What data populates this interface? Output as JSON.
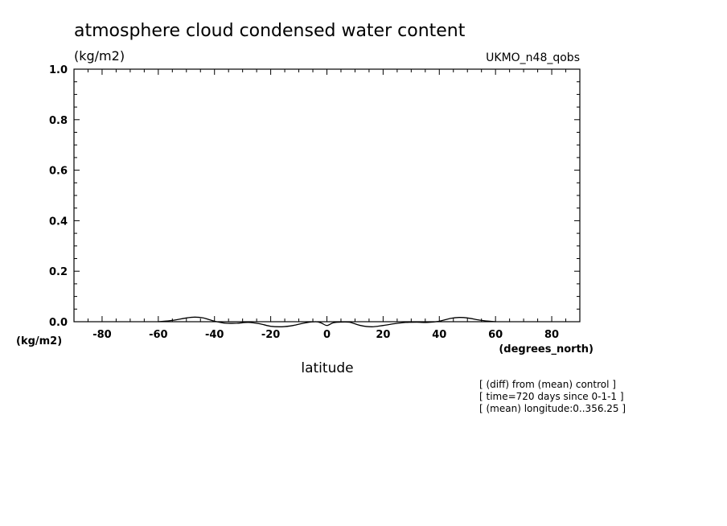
{
  "title": "atmosphere cloud condensed water content",
  "units_label": "(kg/m2)",
  "model_label": "UKMO_n48_qobs",
  "notes": [
    "[ (diff) from (mean) control ]",
    "[ time=720 days since 0-1-1 ]",
    "[ (mean) longitude:0..356.25 ]"
  ],
  "chart_data": {
    "type": "line",
    "title": "atmosphere cloud condensed water content",
    "xlabel": "latitude",
    "xunits": "(degrees_north)",
    "ylabel": "(kg/m2)",
    "xlim": [
      -90,
      90
    ],
    "ylim": [
      0,
      1.0
    ],
    "x_ticks": [
      -80,
      -60,
      -40,
      -20,
      0,
      20,
      40,
      60,
      80
    ],
    "x_tick_labels": [
      "-80",
      "-60",
      "-40",
      "-20",
      "0",
      "20",
      "40",
      "60",
      "80"
    ],
    "y_ticks": [
      0,
      0.2,
      0.4,
      0.6,
      0.8,
      1.0
    ],
    "y_tick_labels": [
      "0.0",
      "0.2",
      "0.4",
      "0.6",
      "0.8",
      "1.0"
    ],
    "grid": false,
    "series": [
      {
        "x": [
          -60,
          -55,
          -50,
          -47,
          -44,
          -40,
          -36,
          -32,
          -28,
          -24,
          -20,
          -16,
          -12,
          -8,
          -4,
          -2,
          0,
          2,
          4,
          8,
          12,
          16,
          20,
          24,
          28,
          32,
          36,
          40,
          44,
          47,
          50,
          55,
          60
        ],
        "values": [
          0.0,
          0.005,
          0.015,
          0.018,
          0.015,
          0.002,
          -0.006,
          -0.006,
          -0.003,
          -0.008,
          -0.018,
          -0.02,
          -0.015,
          -0.005,
          0.0,
          -0.005,
          -0.015,
          -0.005,
          -0.002,
          -0.002,
          -0.015,
          -0.02,
          -0.015,
          -0.008,
          -0.003,
          -0.002,
          -0.003,
          0.002,
          0.013,
          0.017,
          0.015,
          0.005,
          0.0
        ]
      }
    ]
  }
}
